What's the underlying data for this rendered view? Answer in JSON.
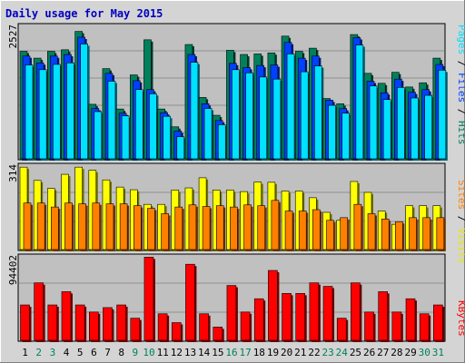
{
  "colors": {
    "frame_bg": "#d4d4d4",
    "plot_bg": "#c0c0c0",
    "title": "#0000c0",
    "hits": "#00805c",
    "files": "#0040ff",
    "pages": "#00e0ff",
    "visits": "#ffff00",
    "sites": "#ff8000",
    "kbytes": "#ff0000",
    "weekday_label": "#000000",
    "weekend_label": "#00805c"
  },
  "chart_data": {
    "type": "bar",
    "title": "Daily usage for May 2015",
    "categories": [
      "1",
      "2",
      "3",
      "4",
      "5",
      "6",
      "7",
      "8",
      "9",
      "10",
      "11",
      "12",
      "13",
      "14",
      "15",
      "16",
      "17",
      "18",
      "19",
      "20",
      "21",
      "22",
      "23",
      "24",
      "25",
      "26",
      "27",
      "28",
      "29",
      "30",
      "31"
    ],
    "weekend_days": [
      "2",
      "3",
      "9",
      "10",
      "16",
      "17",
      "23",
      "24",
      "30",
      "31"
    ],
    "panels": [
      {
        "key": "requests",
        "max_label": "2527",
        "ylim": [
          0,
          2527
        ],
        "legend": {
          "first": "Pages",
          "sep1": " / ",
          "second": "Files",
          "sep2": " / ",
          "third": "Hits"
        },
        "series": [
          {
            "name": "Hits",
            "values": [
              2050,
              1920,
              2050,
              2080,
              2430,
              1040,
              1720,
              950,
              1600,
              2270,
              950,
              610,
              2180,
              1170,
              830,
              2070,
              1990,
              2000,
              2020,
              2340,
              2050,
              2110,
              1150,
              1050,
              2370,
              1630,
              1440,
              1650,
              1370,
              1450,
              1920
            ]
          },
          {
            "name": "Files",
            "values": [
              1960,
              1830,
              1960,
              1990,
              2320,
              960,
              1630,
              870,
              1490,
              1320,
              880,
              530,
              1990,
              1050,
              730,
              1820,
              1740,
              1780,
              1790,
              2220,
              1920,
              1960,
              1120,
              960,
              2310,
              1480,
              1260,
              1520,
              1270,
              1320,
              1800
            ]
          },
          {
            "name": "Pages",
            "values": [
              1790,
              1700,
              1800,
              1830,
              2190,
              900,
              1480,
              820,
              1320,
              1240,
              810,
              420,
              1840,
              960,
              650,
              1700,
              1640,
              1560,
              1520,
              2000,
              1660,
              1770,
              1020,
              870,
              2170,
              1390,
              1130,
              1360,
              1160,
              1210,
              1690
            ]
          }
        ]
      },
      {
        "key": "visitors",
        "max_label": "314",
        "ylim": [
          0,
          314
        ],
        "legend": {
          "first": "Sites",
          "sep1": " / ",
          "second": "Visits"
        },
        "series": [
          {
            "name": "Visits",
            "values": [
              310,
              260,
              230,
              283,
              310,
              298,
              262,
              235,
              225,
              170,
              170,
              224,
              232,
              270,
              224,
              224,
              218,
              254,
              253,
              220,
              220,
              195,
              140,
              110,
              256,
              215,
              145,
              95,
              165,
              165,
              165
            ]
          },
          {
            "name": "Sites",
            "values": [
              175,
              175,
              160,
              175,
              172,
              175,
              172,
              172,
              165,
              155,
              135,
              160,
              168,
              162,
              165,
              160,
              168,
              165,
              185,
              145,
              145,
              150,
              110,
              120,
              170,
              135,
              115,
              105,
              120,
              120,
              120
            ]
          }
        ]
      },
      {
        "key": "volume",
        "max_label": "94402",
        "ylim": [
          0,
          94402
        ],
        "legend": {
          "first": "KBytes"
        },
        "series": [
          {
            "name": "KBytes",
            "values": [
              40000,
              65000,
              40000,
              55000,
              40000,
              32000,
              37000,
              40000,
              25000,
              94000,
              30000,
              20000,
              86000,
              30000,
              15000,
              62000,
              32000,
              47000,
              79000,
              53000,
              53000,
              65000,
              61000,
              25000,
              65000,
              32000,
              55000,
              32000,
              47000,
              30000,
              40000
            ]
          }
        ]
      }
    ]
  }
}
